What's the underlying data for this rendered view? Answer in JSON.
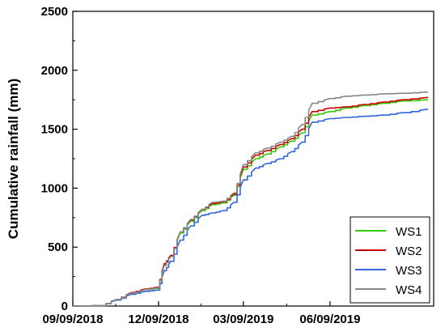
{
  "chart_data": {
    "type": "line",
    "title": "",
    "xlabel": "",
    "ylabel": "Cumulative rainfall (mm)",
    "x_unit": "date",
    "xlim": [
      "2018-09-09",
      "2019-09-27"
    ],
    "ylim": [
      0,
      2500
    ],
    "grid": false,
    "legend": "bottom-right",
    "x_ticks": [
      "09/09/2018",
      "12/09/2018",
      "03/09/2019",
      "06/09/2019"
    ],
    "x_tick_dates": [
      "2018-09-09",
      "2018-12-09",
      "2019-03-09",
      "2019-06-09"
    ],
    "y_ticks": [
      "0",
      "500",
      "1000",
      "1500",
      "2000",
      "2500"
    ],
    "y_tick_values": [
      0,
      500,
      1000,
      1500,
      2000,
      2500
    ],
    "x": [
      "2018-09-09",
      "2018-10-09",
      "2018-10-25",
      "2018-11-10",
      "2018-11-25",
      "2018-12-08",
      "2018-12-15",
      "2018-12-22",
      "2019-01-01",
      "2019-01-12",
      "2019-01-24",
      "2019-02-04",
      "2019-02-16",
      "2019-02-27",
      "2019-03-09",
      "2019-03-22",
      "2019-04-03",
      "2019-04-17",
      "2019-04-29",
      "2019-05-10",
      "2019-05-21",
      "2019-06-09",
      "2019-06-26",
      "2019-07-15",
      "2019-08-05",
      "2019-08-25",
      "2019-09-21"
    ],
    "series": [
      {
        "name": "WS1",
        "color": "#33cc00",
        "values": [
          0,
          5,
          55,
          110,
          140,
          150,
          350,
          420,
          620,
          720,
          810,
          860,
          875,
          940,
          1160,
          1250,
          1290,
          1350,
          1400,
          1470,
          1620,
          1650,
          1680,
          1700,
          1720,
          1740,
          1750
        ]
      },
      {
        "name": "WS2",
        "color": "#cc0000",
        "values": [
          0,
          5,
          55,
          115,
          145,
          160,
          360,
          430,
          630,
          730,
          820,
          870,
          885,
          950,
          1180,
          1280,
          1320,
          1370,
          1420,
          1500,
          1650,
          1680,
          1690,
          1710,
          1730,
          1750,
          1770
        ]
      },
      {
        "name": "WS3",
        "color": "#3366dd",
        "values": [
          0,
          5,
          50,
          100,
          125,
          135,
          300,
          380,
          560,
          680,
          770,
          790,
          810,
          880,
          1070,
          1170,
          1210,
          1250,
          1310,
          1390,
          1560,
          1590,
          1600,
          1610,
          1620,
          1640,
          1670
        ]
      },
      {
        "name": "WS4",
        "color": "#888888",
        "values": [
          0,
          5,
          55,
          110,
          140,
          155,
          345,
          420,
          630,
          735,
          820,
          880,
          890,
          960,
          1200,
          1300,
          1340,
          1390,
          1440,
          1540,
          1720,
          1760,
          1780,
          1790,
          1800,
          1805,
          1815
        ]
      }
    ]
  }
}
